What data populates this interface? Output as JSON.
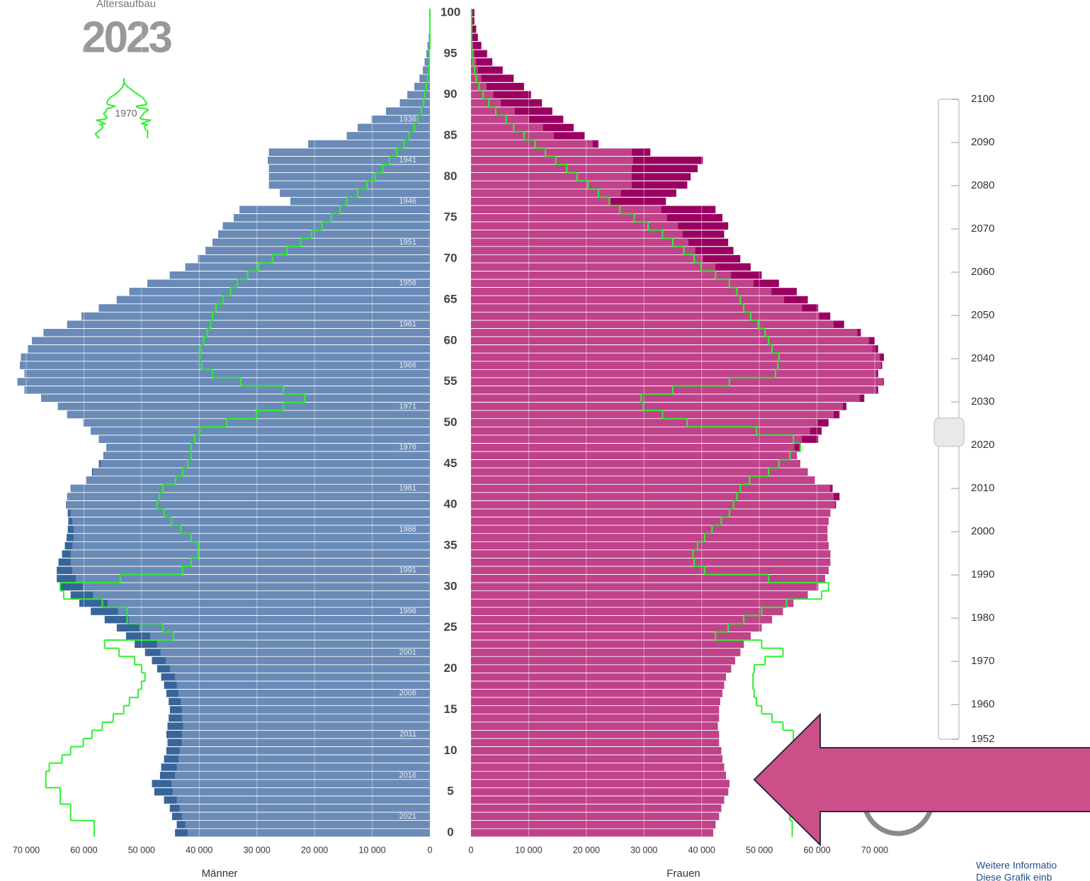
{
  "chart_data": {
    "type": "population_pyramid",
    "title": "Altersaufbau",
    "year": 2023,
    "comparison_label": 1970,
    "x_label_left": "Männer",
    "x_label_right": "Frauen",
    "categories": [
      0,
      1,
      2,
      3,
      4,
      5,
      6,
      7,
      8,
      9,
      10,
      11,
      12,
      13,
      14,
      15,
      16,
      17,
      18,
      19,
      20,
      21,
      22,
      23,
      24,
      25,
      26,
      27,
      28,
      29,
      30,
      31,
      32,
      33,
      34,
      35,
      36,
      37,
      38,
      39,
      40,
      41,
      42,
      43,
      44,
      45,
      46,
      47,
      48,
      49,
      50,
      51,
      52,
      53,
      54,
      55,
      56,
      57,
      58,
      59,
      60,
      61,
      62,
      63,
      64,
      65,
      66,
      67,
      68,
      69,
      70,
      71,
      72,
      73,
      74,
      75,
      76,
      77,
      78,
      79,
      80,
      81,
      82,
      83,
      84,
      85,
      86,
      87,
      88,
      89,
      90,
      91,
      92,
      93,
      94,
      95,
      96,
      97,
      98,
      99,
      100
    ],
    "ylim": [
      0,
      100
    ],
    "yticks": [
      0,
      5,
      10,
      15,
      20,
      25,
      30,
      35,
      40,
      45,
      50,
      55,
      60,
      65,
      70,
      75,
      80,
      85,
      90,
      95,
      100
    ],
    "xlim": [
      0,
      70000
    ],
    "xticks": [
      0,
      {
        "value": 10000,
        "label": "10 000"
      },
      {
        "value": 20000,
        "label": "20 000"
      },
      {
        "value": 30000,
        "label": "30 000"
      },
      {
        "value": 40000,
        "label": "40 000"
      },
      {
        "value": 50000,
        "label": "50 000"
      },
      {
        "value": 60000,
        "label": "60 000"
      },
      {
        "value": 70000,
        "label": "70 000"
      }
    ],
    "grid": true,
    "birth_year_labels": [
      1936,
      1941,
      1946,
      1951,
      1956,
      1961,
      1966,
      1971,
      1976,
      1981,
      1986,
      1991,
      1996,
      2001,
      2006,
      2011,
      2016,
      2021
    ],
    "series": [
      {
        "name": "Männer",
        "side": "left",
        "color": "#6a8bb7",
        "surplus_color": "#37659a",
        "values": [
          44200,
          43900,
          44700,
          45100,
          46100,
          47800,
          48200,
          46800,
          46600,
          46100,
          45700,
          45500,
          45700,
          45500,
          45300,
          45100,
          45300,
          45700,
          46100,
          46600,
          47300,
          48200,
          49400,
          51200,
          52700,
          54300,
          56400,
          58800,
          60800,
          62300,
          64100,
          64700,
          64700,
          64400,
          63800,
          63300,
          63000,
          62800,
          62700,
          62800,
          63100,
          62900,
          62300,
          59600,
          58600,
          57400,
          56600,
          56100,
          57400,
          58800,
          60100,
          62900,
          64500,
          67400,
          70300,
          71500,
          70300,
          71100,
          70900,
          69700,
          69000,
          67000,
          62900,
          60400,
          57400,
          54300,
          52100,
          49000,
          45100,
          42400,
          40200,
          38900,
          37700,
          36700,
          35900,
          34000,
          33000,
          24200,
          26000,
          27900,
          27900,
          27900,
          28100,
          27900,
          21100,
          14400,
          12500,
          10100,
          7600,
          5200,
          3900,
          2700,
          1800,
          1200,
          900,
          600,
          400,
          200,
          100,
          100,
          100
        ]
      },
      {
        "name": "Frauen",
        "side": "right",
        "color": "#c0428a",
        "surplus_color": "#9a0060",
        "values": [
          42000,
          42400,
          43000,
          43400,
          43900,
          44600,
          44800,
          44200,
          43900,
          43600,
          43400,
          43000,
          43000,
          42800,
          43000,
          43000,
          43200,
          43600,
          43900,
          44200,
          45100,
          45800,
          46700,
          47300,
          48500,
          50400,
          52200,
          54100,
          55900,
          58400,
          60200,
          61400,
          62000,
          62300,
          62300,
          62000,
          61800,
          61800,
          62000,
          62300,
          63300,
          63900,
          62700,
          59600,
          58400,
          57100,
          56500,
          57100,
          60200,
          60800,
          62000,
          63900,
          65100,
          68200,
          70600,
          71600,
          70600,
          71300,
          71600,
          70600,
          70000,
          67600,
          64700,
          62300,
          60200,
          58400,
          56500,
          53400,
          50400,
          48500,
          46700,
          45500,
          44600,
          43900,
          44600,
          43600,
          42400,
          33800,
          35600,
          37500,
          38100,
          39300,
          40200,
          31100,
          22100,
          19700,
          17800,
          16000,
          14100,
          12300,
          10400,
          9200,
          7400,
          5500,
          3700,
          2800,
          1800,
          1200,
          900,
          600,
          600
        ]
      }
    ],
    "comparison": {
      "color": "#2ef02e",
      "male": [
        58200,
        58200,
        62300,
        62300,
        64100,
        64100,
        66600,
        66600,
        66000,
        63800,
        62300,
        60100,
        58600,
        56800,
        54900,
        53100,
        52100,
        50600,
        50000,
        49400,
        50000,
        51200,
        53900,
        56400,
        44500,
        46300,
        52500,
        52500,
        56800,
        63500,
        64100,
        53700,
        42900,
        41400,
        40200,
        40200,
        41400,
        43200,
        44800,
        46100,
        47300,
        46900,
        46300,
        44100,
        42900,
        42000,
        41400,
        41400,
        40800,
        39900,
        35300,
        30100,
        25400,
        21700,
        25400,
        32800,
        37700,
        39600,
        39900,
        39700,
        39200,
        38600,
        38000,
        37700,
        37100,
        35900,
        34600,
        33400,
        31600,
        29700,
        27300,
        24800,
        22400,
        20500,
        18700,
        17100,
        15600,
        14400,
        12500,
        10900,
        9500,
        8200,
        7000,
        5800,
        4500,
        3600,
        2700,
        2100,
        1500,
        1100,
        900,
        600,
        400,
        200,
        100,
        100,
        0,
        0,
        0,
        0,
        0
      ],
      "female": [
        55700,
        55700,
        55300,
        55300,
        55300,
        55700,
        55700,
        55900,
        55900,
        55900,
        55900,
        55900,
        55900,
        54100,
        52200,
        50400,
        49500,
        49100,
        48900,
        48900,
        49100,
        51000,
        54100,
        50400,
        42400,
        44600,
        47300,
        50400,
        54700,
        60800,
        62000,
        51600,
        40500,
        38700,
        38500,
        39300,
        40500,
        41800,
        43400,
        44800,
        45500,
        46100,
        46700,
        48300,
        51600,
        53400,
        55300,
        57100,
        55900,
        49500,
        37500,
        33200,
        29900,
        29500,
        35000,
        44800,
        52800,
        53200,
        53400,
        52200,
        51600,
        51000,
        49800,
        48500,
        47300,
        46700,
        46100,
        44800,
        42400,
        39900,
        38700,
        36900,
        35000,
        33200,
        30700,
        28300,
        25800,
        24000,
        22100,
        20300,
        18400,
        16600,
        14700,
        12900,
        11100,
        9200,
        7400,
        6100,
        4300,
        3100,
        2100,
        1400,
        900,
        600,
        400,
        200,
        100,
        100,
        100,
        100,
        100
      ]
    },
    "slider": {
      "lim": [
        1952,
        2100
      ],
      "ticks": [
        2100,
        2090,
        2080,
        2070,
        2060,
        2050,
        2040,
        2030,
        2020,
        2010,
        2000,
        1990,
        1980,
        1970,
        1960,
        1952
      ]
    },
    "footer_links": [
      "Weitere Informatio",
      "Diese Grafik einb"
    ]
  }
}
